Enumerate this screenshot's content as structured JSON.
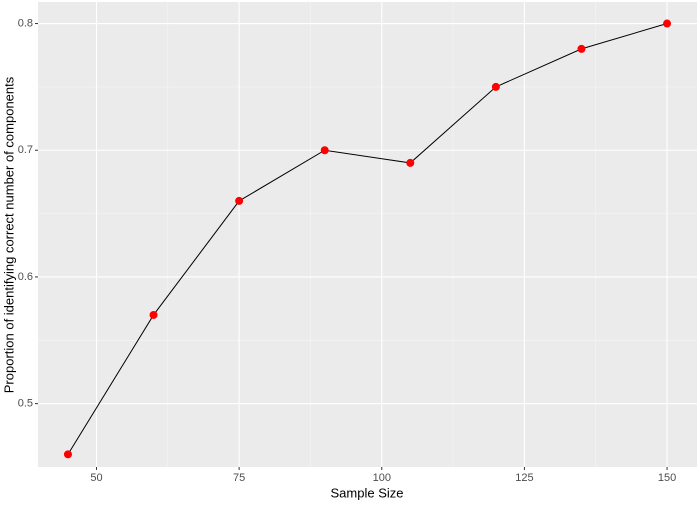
{
  "chart_data": {
    "type": "line",
    "x_label": "Sample Size",
    "y_label": "Proportion of identifying correct number of components",
    "x": [
      45,
      60,
      75,
      90,
      105,
      120,
      135,
      150
    ],
    "series": [
      {
        "color": "#000000",
        "marker_color": "#ff0000",
        "values": [
          0.46,
          0.57,
          0.66,
          0.7,
          0.69,
          0.75,
          0.78,
          0.8
        ]
      }
    ],
    "xlim": [
      39.75,
      155.25
    ],
    "xticks": [
      50,
      75,
      100,
      125,
      150
    ],
    "ylim": [
      0.45,
      0.817
    ],
    "yticks": [
      0.5,
      0.6,
      0.7,
      0.8
    ],
    "grid": true
  }
}
